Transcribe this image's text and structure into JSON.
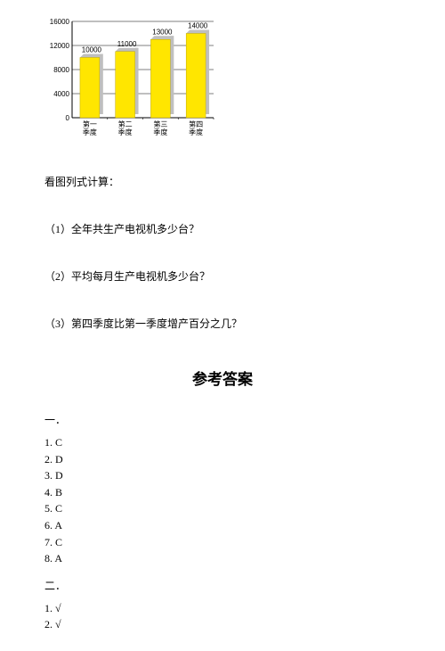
{
  "chart": {
    "type": "bar",
    "categories": [
      "第一\n季度",
      "第二\n季度",
      "第三\n季度",
      "第四\n季度"
    ],
    "values": [
      10000,
      11000,
      13000,
      14000
    ],
    "value_labels": [
      "10000",
      "11000",
      "13000",
      "14000"
    ],
    "bar_color": "#ffe600",
    "bar_border_color": "#c0a800",
    "shadow_color": "#bfbfbf",
    "axis_color": "#000000",
    "grid_color": "#000000",
    "yticks": [
      0,
      4000,
      8000,
      12000,
      16000
    ],
    "ytick_labels": [
      "0",
      "4000",
      "8000",
      "12000",
      "16000"
    ],
    "label_fontsize": 8,
    "tick_fontsize": 8,
    "value_label_fontsize": 8,
    "background_color": "#ffffff"
  },
  "prompt": "看图列式计算：",
  "questions": [
    "（1）全年共生产电视机多少台？",
    "（2）平均每月生产电视机多少台？",
    "（3）第四季度比第一季度增产百分之几？"
  ],
  "answers_title": "参考答案",
  "section1": {
    "label": "一．",
    "items": [
      "1. C",
      "2. D",
      "3. D",
      "4. B",
      "5. C",
      "6. A",
      "7. C",
      "8. A"
    ]
  },
  "section2": {
    "label": "二．",
    "items": [
      "1. √",
      "2. √"
    ]
  }
}
